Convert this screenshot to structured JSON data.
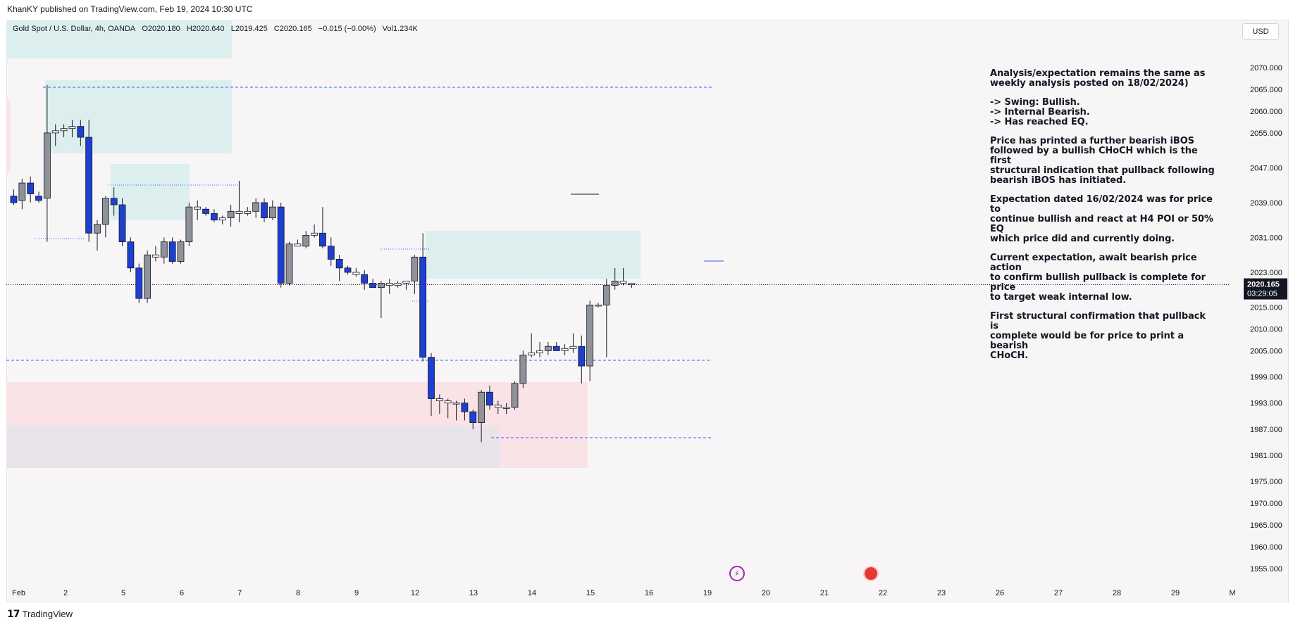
{
  "header": {
    "published": "KhanKY published on TradingView.com, Feb 19, 2024 10:30 UTC",
    "symbol": "Gold Spot / U.S. Dollar, 4h, OANDA",
    "open": "O2020.180",
    "high": "H2020.640",
    "low": "L2019.425",
    "close": "C2020.165",
    "change": "−0.015 (−0.00%)",
    "volume": "Vol1.234K",
    "currency_button": "USD"
  },
  "price_label": {
    "price": "2020.165",
    "countdown": "03:29:05",
    "color": "#131722"
  },
  "note": {
    "paragraphs": [
      "Analysis/expectation remains the same as\nweekly analysis posted on 18/02/2024)",
      "-> Swing: Bullish.\n-> Internal Bearish.\n-> Has reached EQ.",
      "Price has printed a further bearish iBOS\nfollowed by a bullish CHoCH which is the first\nstructural indication that pullback following\nbearish iBOS has initiated.",
      "Expectation dated 16/02/2024 was for price to\ncontinue bullish and react at H4 POI or 50% EQ\nwhich price did and currently doing.",
      "Current expectation, await bearish price action\nto confirm bullish pullback is complete for price\nto target weak internal low.",
      "First structural confirmation that pullback is\ncomplete would be for price to print a bearish\nCHoCH."
    ]
  },
  "footer": {
    "logo": "𝟭𝟳",
    "brand": "TradingView"
  },
  "icons": {
    "event1": "lightning-icon",
    "event2": "us-flag-icon"
  },
  "colors": {
    "bear": "#1e3fd0",
    "bull": "#8f9299",
    "zone_teal": "#dcefee",
    "zone_pink": "#f9e3e6",
    "zone_grey": "#e8e4ea",
    "dashed": "#2962ff",
    "bg": "#f8f5f6"
  },
  "chart_data": {
    "type": "candlestick",
    "title": "Gold Spot / U.S. Dollar, 4h, OANDA",
    "ylim": [
      1951,
      2075
    ],
    "y_ticks": [
      "2070.000",
      "2065.000",
      "2060.000",
      "2055.000",
      "2047.000",
      "2039.000",
      "2031.000",
      "2023.000",
      "2015.000",
      "2010.000",
      "2005.000",
      "1999.000",
      "1993.000",
      "1987.000",
      "1981.000",
      "1975.000",
      "1970.000",
      "1965.000",
      "1960.000",
      "1955.000"
    ],
    "x_ticks": [
      "Feb",
      "2",
      "5",
      "6",
      "7",
      "8",
      "9",
      "12",
      "13",
      "14",
      "15",
      "16",
      "19",
      "20",
      "21",
      "22",
      "23",
      "26",
      "27",
      "28",
      "29",
      "M"
    ],
    "candles": [
      [
        2040.5,
        2042.0,
        2038.5,
        2039.0
      ],
      [
        2039.5,
        2044.5,
        2037.5,
        2043.5
      ],
      [
        2043.5,
        2045.0,
        2039.0,
        2041.0
      ],
      [
        2040.5,
        2041.5,
        2039.0,
        2039.5
      ],
      [
        2040.0,
        2066.0,
        2030.0,
        2055.0
      ],
      [
        2055.0,
        2057.0,
        2052.0,
        2055.5
      ],
      [
        2055.5,
        2057.0,
        2054.0,
        2056.0
      ],
      [
        2056.0,
        2058.0,
        2054.0,
        2056.5
      ],
      [
        2056.5,
        2058.0,
        2052.0,
        2054.0
      ],
      [
        2054.0,
        2058.0,
        2030.0,
        2032.0
      ],
      [
        2032.0,
        2035.0,
        2028.0,
        2034.0
      ],
      [
        2034.0,
        2040.5,
        2031.0,
        2040.0
      ],
      [
        2040.0,
        2042.5,
        2036.0,
        2038.5
      ],
      [
        2038.5,
        2040.0,
        2029.0,
        2030.0
      ],
      [
        2030.0,
        2031.0,
        2023.0,
        2024.0
      ],
      [
        2024.0,
        2025.0,
        2016.0,
        2017.0
      ],
      [
        2017.0,
        2028.0,
        2016.0,
        2027.0
      ],
      [
        2027.0,
        2029.0,
        2025.5,
        2026.5
      ],
      [
        2026.5,
        2031.0,
        2025.0,
        2030.0
      ],
      [
        2030.0,
        2031.0,
        2025.0,
        2025.5
      ],
      [
        2025.5,
        2030.5,
        2025.0,
        2030.0
      ],
      [
        2030.0,
        2039.0,
        2029.0,
        2038.0
      ],
      [
        2038.0,
        2039.5,
        2035.0,
        2037.5
      ],
      [
        2037.5,
        2038.0,
        2036.0,
        2036.5
      ],
      [
        2036.5,
        2037.5,
        2034.5,
        2035.0
      ],
      [
        2035.0,
        2036.0,
        2034.0,
        2035.5
      ],
      [
        2035.5,
        2038.5,
        2033.5,
        2037.0
      ],
      [
        2037.0,
        2044.0,
        2034.5,
        2036.5
      ],
      [
        2036.5,
        2038.0,
        2036.0,
        2037.0
      ],
      [
        2037.0,
        2040.0,
        2035.5,
        2039.0
      ],
      [
        2039.0,
        2040.0,
        2034.5,
        2035.5
      ],
      [
        2035.5,
        2039.5,
        2035.0,
        2038.0
      ],
      [
        2038.0,
        2039.0,
        2019.5,
        2020.5
      ],
      [
        2020.5,
        2030.0,
        2020.0,
        2029.5
      ],
      [
        2029.5,
        2030.5,
        2029.0,
        2029.0
      ],
      [
        2029.0,
        2032.5,
        2028.5,
        2031.5
      ],
      [
        2031.5,
        2034.0,
        2031.0,
        2032.0
      ],
      [
        2032.0,
        2038.0,
        2028.5,
        2029.0
      ],
      [
        2029.0,
        2031.0,
        2024.5,
        2026.0
      ],
      [
        2026.0,
        2027.0,
        2021.0,
        2024.0
      ],
      [
        2024.0,
        2024.5,
        2022.5,
        2023.0
      ],
      [
        2023.0,
        2024.0,
        2022.0,
        2022.5
      ],
      [
        2022.5,
        2023.5,
        2019.0,
        2020.5
      ],
      [
        2020.5,
        2021.5,
        2019.5,
        2019.5
      ],
      [
        2019.5,
        2021.0,
        2012.5,
        2020.5
      ],
      [
        2020.5,
        2021.5,
        2018.0,
        2020.0
      ],
      [
        2020.0,
        2021.0,
        2019.5,
        2020.5
      ],
      [
        2020.5,
        2021.0,
        2019.0,
        2021.0
      ],
      [
        2021.0,
        2027.0,
        2018.0,
        2026.5
      ],
      [
        2026.5,
        2032.0,
        2002.5,
        2003.5
      ],
      [
        2003.5,
        2004.5,
        1990.0,
        1994.0
      ],
      [
        1994.0,
        1995.0,
        1990.5,
        1993.5
      ],
      [
        1993.5,
        1994.0,
        1989.5,
        1993.0
      ],
      [
        1993.0,
        1993.5,
        1989.0,
        1993.0
      ],
      [
        1993.0,
        1994.0,
        1989.0,
        1991.0
      ],
      [
        1991.0,
        1991.5,
        1987.0,
        1988.5
      ],
      [
        1988.5,
        1996.0,
        1984.0,
        1995.5
      ],
      [
        1995.5,
        1997.0,
        1991.5,
        1992.5
      ],
      [
        1992.5,
        1993.5,
        1990.5,
        1992.0
      ],
      [
        1992.0,
        1993.0,
        1990.5,
        1992.0
      ],
      [
        1992.0,
        1998.0,
        1991.5,
        1997.5
      ],
      [
        1997.5,
        2005.0,
        1996.5,
        2004.0
      ],
      [
        2004.0,
        2009.0,
        2003.5,
        2004.5
      ],
      [
        2004.5,
        2007.0,
        2003.5,
        2005.0
      ],
      [
        2005.0,
        2007.0,
        2004.0,
        2006.0
      ],
      [
        2006.0,
        2007.0,
        2005.0,
        2005.0
      ],
      [
        2005.0,
        2006.5,
        2004.0,
        2005.5
      ],
      [
        2005.5,
        2009.0,
        2004.5,
        2006.0
      ],
      [
        2006.0,
        2008.5,
        1997.5,
        2001.5
      ],
      [
        2001.5,
        2016.5,
        1998.0,
        2015.5
      ],
      [
        2015.5,
        2016.0,
        2015.0,
        2015.5
      ],
      [
        2015.5,
        2021.5,
        2003.5,
        2020.0
      ],
      [
        2020.0,
        2024.0,
        2019.0,
        2021.0
      ],
      [
        2021.0,
        2024.0,
        2020.0,
        2020.5
      ],
      [
        2020.5,
        2020.6,
        2019.4,
        2020.165
      ]
    ]
  }
}
